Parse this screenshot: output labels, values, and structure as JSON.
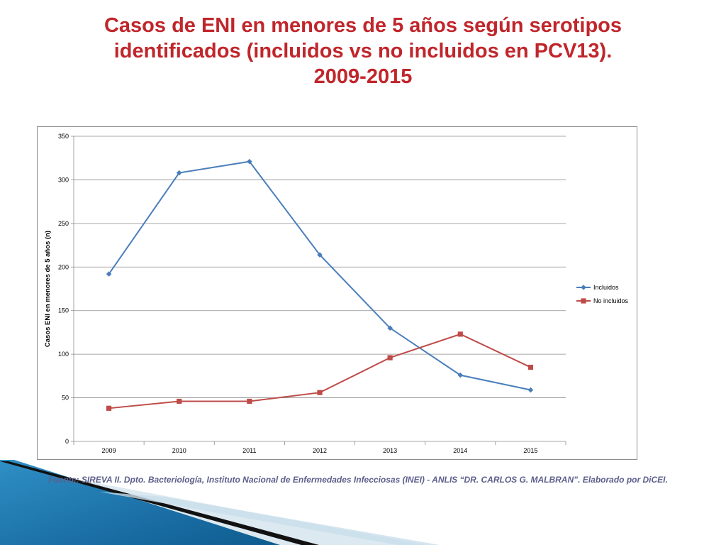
{
  "slide": {
    "title_lines": [
      "Casos de ENI en menores de 5 años según serotipos",
      "identificados (incluidos vs no incluidos en PCV13).",
      "2009-2015"
    ],
    "source_note": "Fuente: SIREVA  II. Dpto. Bacteriología, Instituto Nacional de Enfermedades Infecciosas (INEI) - ANLIS “DR. CARLOS G. MALBRAN”. Elaborado por DiCEI.",
    "colors": {
      "title": "#c0262b",
      "source_note": "#5b5f8a",
      "deco_blue": "#1f7fb6",
      "deco_light": "#d6e6ef"
    }
  },
  "chart_data": {
    "type": "line",
    "categories": [
      "2009",
      "2010",
      "2011",
      "2012",
      "2013",
      "2014",
      "2015"
    ],
    "ylabel": "Casos ENI en menores de 5 años (n)",
    "ylim": [
      0,
      350
    ],
    "yticks": [
      0,
      50,
      100,
      150,
      200,
      250,
      300,
      350
    ],
    "grid": true,
    "legend_position": "right",
    "series": [
      {
        "name": "Incluidos",
        "color": "#4a7ebb",
        "marker": "diamond",
        "values": [
          192,
          308,
          321,
          214,
          130,
          76,
          59
        ]
      },
      {
        "name": "No incluidos",
        "color": "#be4b48",
        "marker": "square",
        "values": [
          38,
          46,
          46,
          56,
          96,
          123,
          85
        ]
      }
    ]
  }
}
